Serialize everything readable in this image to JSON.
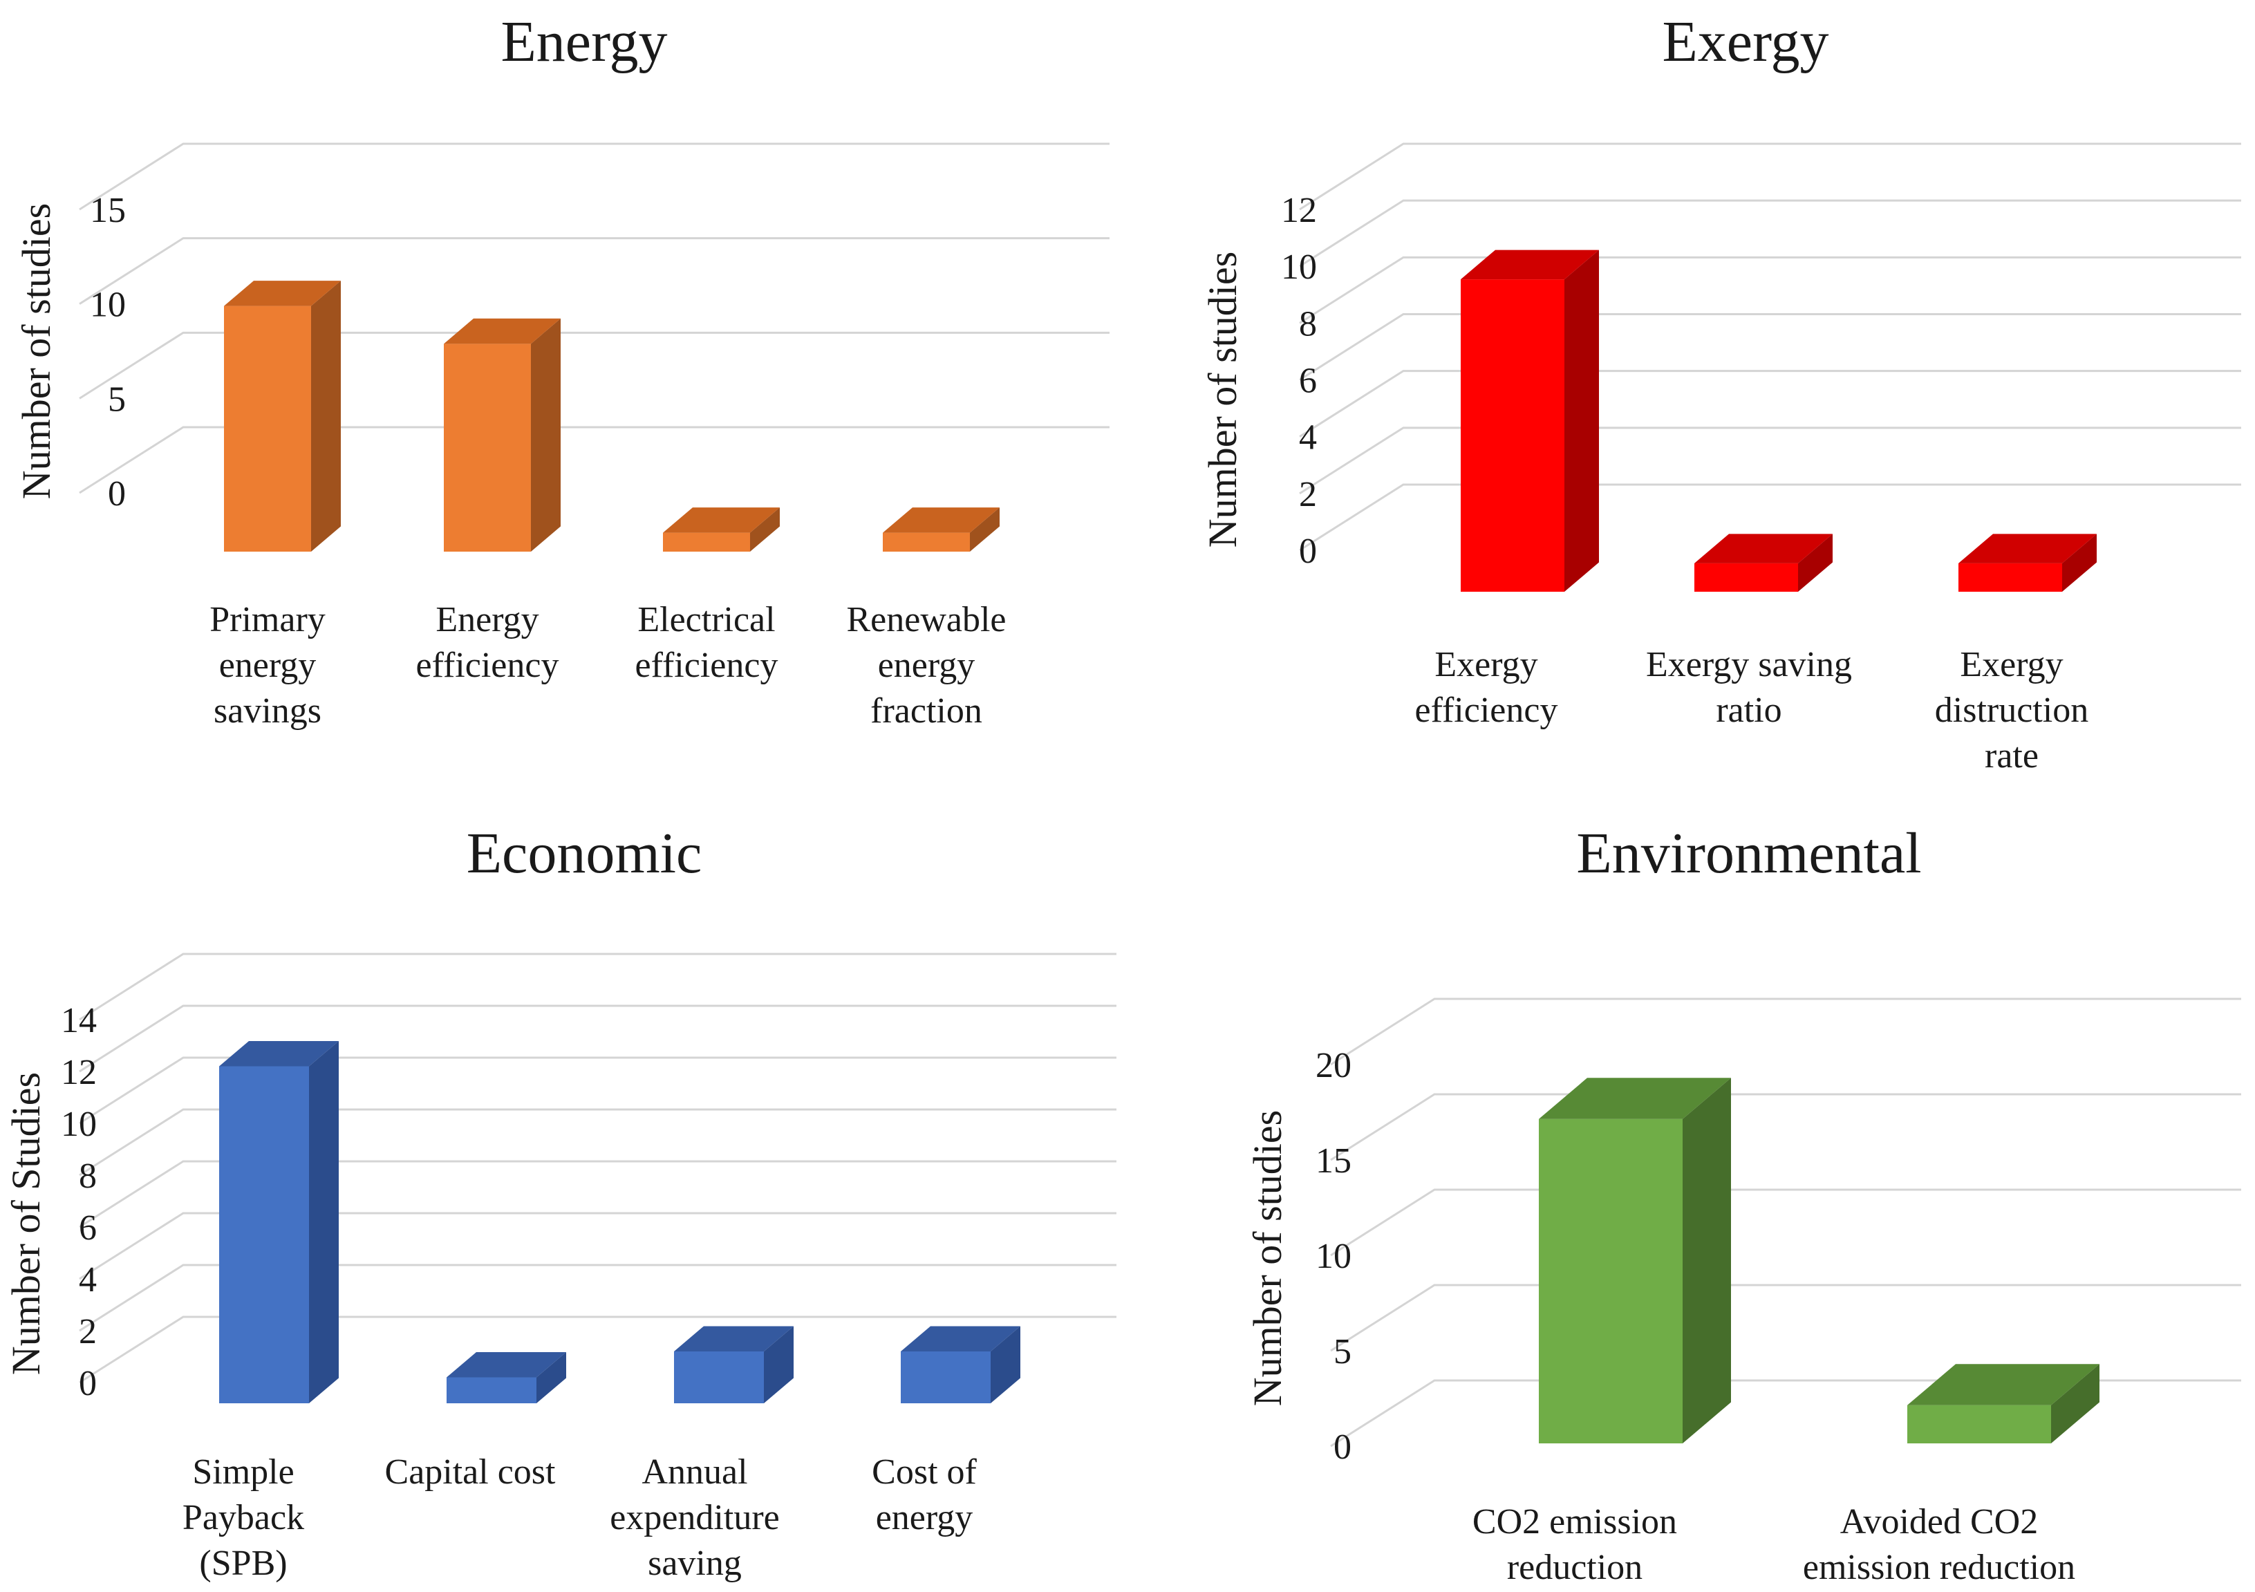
{
  "figure": {
    "charts": [
      "energy",
      "exergy",
      "economic",
      "environmental"
    ]
  },
  "chart_data": [
    {
      "id": "energy",
      "type": "bar",
      "title": "Energy",
      "ylabel": "Number of studies",
      "xlabel": "",
      "ylim": [
        0,
        15
      ],
      "yticks": [
        0,
        5,
        10,
        15
      ],
      "yticks_text": [
        "0",
        "5",
        "10",
        "15"
      ],
      "grid": true,
      "categories": [
        [
          "Primary",
          "energy",
          "savings"
        ],
        [
          "Energy",
          "efficiency"
        ],
        [
          "Electrical",
          "efficiency"
        ],
        [
          "Renewable",
          "energy",
          "fraction"
        ]
      ],
      "values": [
        13,
        11,
        1,
        1
      ],
      "colors": {
        "front": "#ED7D31",
        "side": "#A0521D",
        "top": "#C9631F"
      }
    },
    {
      "id": "exergy",
      "type": "bar",
      "title": "Exergy",
      "ylabel": "Number of studies",
      "xlabel": "",
      "ylim": [
        0,
        12
      ],
      "yticks": [
        0,
        2,
        4,
        6,
        8,
        10,
        12
      ],
      "yticks_text": [
        "0",
        "2",
        "4",
        "6",
        "8",
        "10",
        "12"
      ],
      "grid": true,
      "categories": [
        [
          "Exergy",
          "efficiency"
        ],
        [
          "Exergy saving",
          "ratio"
        ],
        [
          "Exergy",
          "distruction",
          "rate"
        ]
      ],
      "values": [
        11,
        1,
        1
      ],
      "colors": {
        "front": "#FF0000",
        "side": "#A80000",
        "top": "#D00000"
      }
    },
    {
      "id": "economic",
      "type": "bar",
      "title": "Economic",
      "ylabel": "Number of Studies",
      "xlabel": "",
      "ylim": [
        0,
        14
      ],
      "yticks": [
        0,
        2,
        4,
        6,
        8,
        10,
        12,
        14
      ],
      "yticks_text": [
        "0",
        "2",
        "4",
        "6",
        "8",
        "10",
        "12",
        "14"
      ],
      "grid": true,
      "categories": [
        [
          "Simple",
          "Payback",
          "(SPB)"
        ],
        [
          "Capital cost"
        ],
        [
          "Annual",
          "expenditure",
          "saving"
        ],
        [
          "Cost of",
          "energy"
        ]
      ],
      "values": [
        13,
        1,
        2,
        2
      ],
      "colors": {
        "front": "#4472C4",
        "side": "#2B4C8C",
        "top": "#34599F"
      }
    },
    {
      "id": "environmental",
      "type": "bar",
      "title": "Environmental",
      "ylabel": "Number of studies",
      "xlabel": "",
      "ylim": [
        0,
        20
      ],
      "yticks": [
        0,
        5,
        10,
        15,
        20
      ],
      "yticks_text": [
        "0",
        "5",
        "10",
        "15",
        "20"
      ],
      "grid": true,
      "categories": [
        [
          "CO2 emission",
          "reduction"
        ],
        [
          "Avoided CO2",
          "emission reduction"
        ]
      ],
      "values": [
        17,
        2
      ],
      "colors": {
        "front": "#70AD47",
        "side": "#466E2B",
        "top": "#578A35"
      }
    }
  ]
}
